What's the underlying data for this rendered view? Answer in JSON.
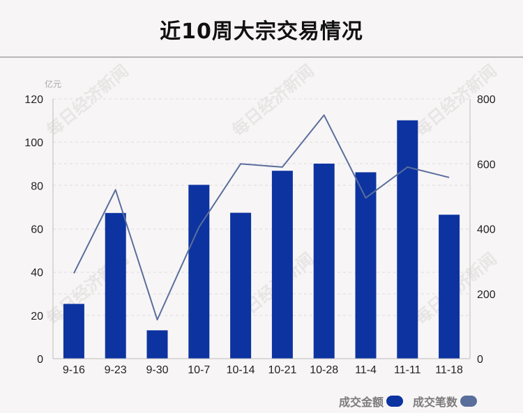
{
  "title": "近10周大宗交易情况",
  "watermark": "每日经济新闻",
  "colors": {
    "bar": "#0c33a0",
    "line": "#5a6e9c",
    "background": "#f8f5f6",
    "grid": "#dedcdd"
  },
  "legend": {
    "amount_label": "成交金额",
    "count_label": "成交笔数"
  },
  "chart_data": {
    "type": "bar",
    "categories": [
      "9-16",
      "9-23",
      "9-30",
      "10-7",
      "10-14",
      "10-21",
      "10-28",
      "11-4",
      "11-11",
      "11-18"
    ],
    "series": [
      {
        "name": "成交金额",
        "type": "bar",
        "axis": "left",
        "values": [
          25.3,
          67.3,
          13.1,
          80.3,
          67.4,
          86.8,
          90.1,
          86.1,
          110.1,
          66.5
        ]
      },
      {
        "name": "成交笔数",
        "type": "line",
        "axis": "right",
        "values": [
          263,
          520,
          120,
          405,
          600,
          590,
          750,
          495,
          590,
          558
        ]
      }
    ],
    "y_left": {
      "unit": "亿元",
      "range": [
        0,
        120
      ],
      "ticks": [
        "0",
        "20",
        "40",
        "60",
        "80",
        "100",
        "120"
      ]
    },
    "y_right": {
      "range": [
        0,
        800
      ],
      "ticks": [
        "0",
        "200",
        "400",
        "600",
        "800"
      ]
    },
    "grid": true,
    "legend_position": "bottom-right"
  }
}
